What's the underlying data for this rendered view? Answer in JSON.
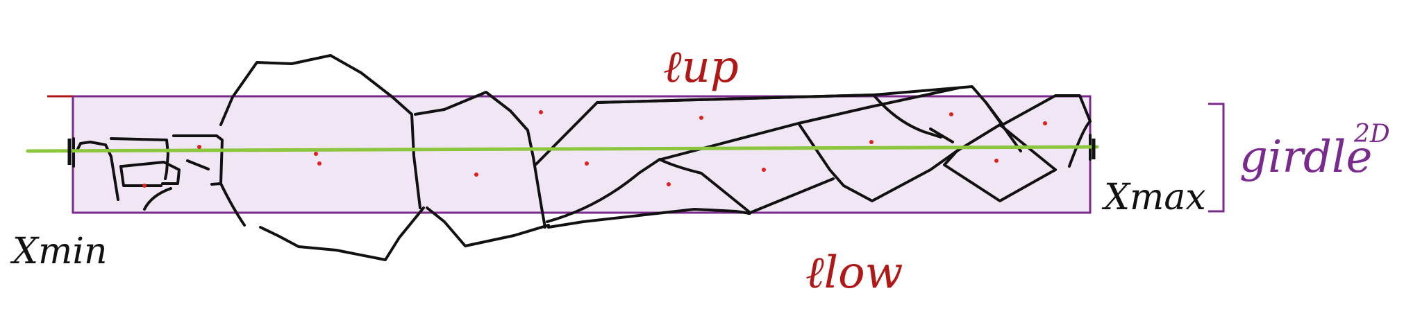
{
  "labels": {
    "upper": "ℓup",
    "lower": "ℓlow",
    "xmin": "Xmin",
    "xmax": "Xmax",
    "girdle": "girdle",
    "girdle_superscript": "2D"
  },
  "colors": {
    "ink": "#111111",
    "red": "#b01818",
    "purple": "#7a2a8c",
    "band_fill": "#f1e6f3",
    "green": "#8cc63f",
    "dot": "#e0201e"
  }
}
